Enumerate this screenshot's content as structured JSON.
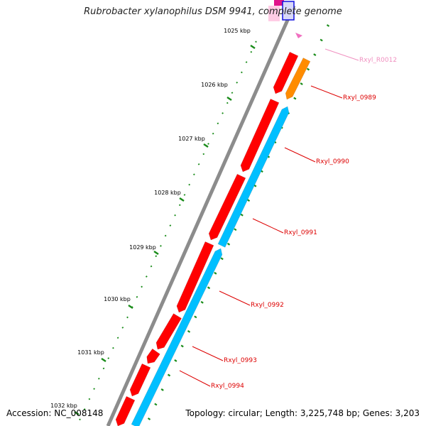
{
  "title": "Rubrobacter xylanophilus DSM 9941, complete genome",
  "footer": {
    "accession": "Accession: NC_008148",
    "summary": "Topology: circular; Length: 3,225,748 bp; Genes: 3,203"
  },
  "colors": {
    "backbone": "#8c8c8c",
    "forward_gene": "#ff0000",
    "reverse_gene": "#00bfff",
    "orange_gene": "#ff8c00",
    "rna_gene": "#ff99cc",
    "magenta_gene": "#e0138a",
    "blue_gene": "#1010e0",
    "tick": "#1a8c1a",
    "label_red": "#dd0000",
    "label_pink": "#f090c0"
  },
  "kbp_labels": [
    "1025 kbp",
    "1026 kbp",
    "1027 kbp",
    "1028 kbp",
    "1029 kbp",
    "1030 kbp",
    "1031 kbp",
    "1032 kbp"
  ],
  "gene_labels": [
    {
      "text": "Rxyl_R0012",
      "color": "label_pink"
    },
    {
      "text": "Rxyl_0989",
      "color": "label_red"
    },
    {
      "text": "Rxyl_0990",
      "color": "label_red"
    },
    {
      "text": "Rxyl_0991",
      "color": "label_red"
    },
    {
      "text": "Rxyl_0992",
      "color": "label_red"
    },
    {
      "text": "Rxyl_0993",
      "color": "label_red"
    },
    {
      "text": "Rxyl_0994",
      "color": "label_red"
    }
  ]
}
